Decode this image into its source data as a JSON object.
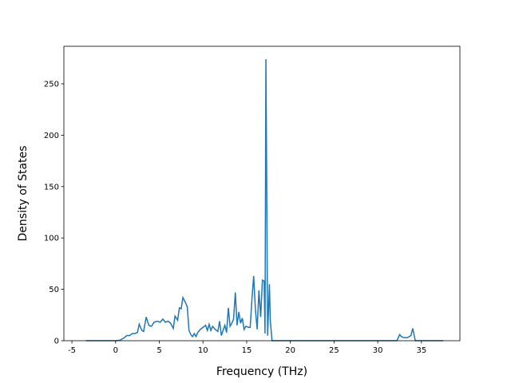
{
  "chart_data": {
    "type": "line",
    "xlabel": "Frequency (THz)",
    "ylabel": "Density of States",
    "x": [
      -3.4,
      0,
      0.5,
      1,
      1.3,
      1.6,
      1.9,
      2.2,
      2.5,
      2.7,
      3.0,
      3.2,
      3.5,
      3.8,
      4.1,
      4.4,
      4.8,
      5.1,
      5.4,
      5.7,
      6.0,
      6.3,
      6.6,
      6.8,
      7.1,
      7.3,
      7.5,
      7.7,
      8.0,
      8.2,
      8.4,
      8.6,
      8.8,
      9.0,
      9.2,
      9.4,
      9.7,
      10.0,
      10.3,
      10.5,
      10.7,
      10.9,
      11.1,
      11.4,
      11.7,
      11.9,
      12.1,
      12.3,
      12.5,
      12.7,
      12.9,
      13.1,
      13.3,
      13.5,
      13.7,
      13.9,
      14.1,
      14.3,
      14.5,
      14.7,
      14.9,
      15.2,
      15.4,
      15.6,
      15.8,
      16.0,
      16.2,
      16.4,
      16.6,
      16.8,
      17.0,
      17.1,
      17.2,
      17.4,
      17.6,
      17.7,
      17.9,
      32.2,
      32.5,
      32.7,
      33.0,
      33.4,
      33.8,
      34.0,
      34.3,
      37.5
    ],
    "series": [
      {
        "color": "#1f77b4",
        "values": [
          0,
          0,
          0.5,
          3,
          5,
          5,
          7,
          7,
          8,
          16,
          10,
          9,
          23,
          15,
          14,
          18,
          19,
          18,
          21,
          18,
          19,
          17,
          12,
          24,
          20,
          32,
          31,
          42,
          37,
          33,
          10,
          6,
          4,
          7,
          4,
          8,
          11,
          13,
          15,
          10,
          16,
          10,
          14,
          11,
          9,
          19,
          5,
          10,
          15,
          8,
          32,
          14,
          17,
          21,
          47,
          15,
          28,
          17,
          22,
          11,
          14,
          13,
          13,
          40,
          63,
          30,
          11,
          49,
          23,
          59,
          58,
          7,
          274,
          5,
          55,
          20,
          0,
          0,
          6,
          4,
          3,
          3,
          5,
          12,
          0,
          0
        ]
      }
    ],
    "xlim": [
      -5.92,
      39.4
    ],
    "ylim": [
      0,
      286.5
    ],
    "xticks": [
      -5,
      0,
      5,
      10,
      15,
      20,
      25,
      30,
      35
    ],
    "yticks": [
      0,
      50,
      100,
      150,
      200,
      250
    ]
  }
}
